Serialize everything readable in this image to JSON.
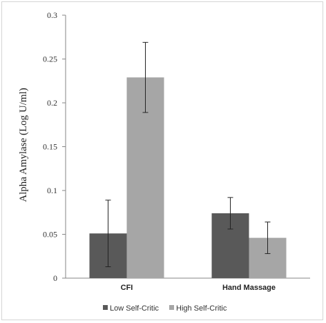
{
  "chart_data": {
    "type": "bar",
    "title": "",
    "xlabel": "",
    "ylabel": "Alpha Amylase (Log  U/ml)",
    "categories": [
      "CFI",
      "Hand Massage"
    ],
    "series": [
      {
        "name": "Low Self-Critic",
        "color": "#595959",
        "values": [
          0.051,
          0.074
        ],
        "error": [
          0.038,
          0.018
        ]
      },
      {
        "name": "High Self-Critic",
        "color": "#a6a6a6",
        "values": [
          0.229,
          0.046
        ],
        "error": [
          0.04,
          0.018
        ]
      }
    ],
    "ylim": [
      0,
      0.3
    ],
    "yticks": [
      0,
      0.05,
      0.1,
      0.15,
      0.2,
      0.25,
      0.3
    ],
    "ytick_labels": [
      "0",
      "0.05",
      "0.1",
      "0.15",
      "0.2",
      "0.25",
      "0.3"
    ],
    "grid": false,
    "legend_position": "bottom"
  }
}
